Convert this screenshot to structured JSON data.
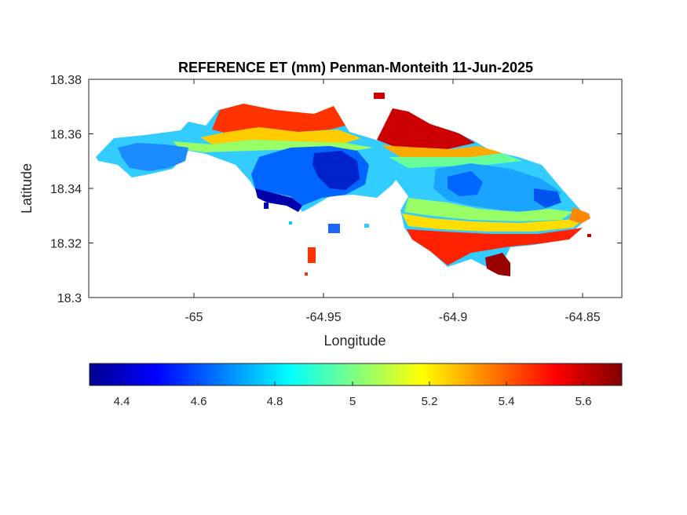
{
  "figure": {
    "title": "REFERENCE ET (mm) Penman-Monteith 11-Jun-2025",
    "xlabel": "Longitude",
    "ylabel": "Latitude",
    "x_ticks": [
      "-65",
      "-64.95",
      "-64.9",
      "-64.85"
    ],
    "y_ticks": [
      "18.38",
      "18.36",
      "18.34",
      "18.32",
      "18.3"
    ],
    "colorbar_ticks": [
      "4.4",
      "4.6",
      "4.8",
      "5",
      "5.2",
      "5.4",
      "5.6"
    ]
  },
  "map": {
    "xlim": [
      -65.04,
      -64.835
    ],
    "ylim": [
      18.3,
      18.38
    ],
    "colorbar_range": [
      4.32,
      5.7
    ],
    "colormap": "jet",
    "colorbar_orientation": "horizontal, below axes",
    "colors": {
      "low": "#00008f",
      "mid": "#80ff80",
      "high": "#800000",
      "axes": "#262626",
      "background": "#ffffff"
    }
  }
}
